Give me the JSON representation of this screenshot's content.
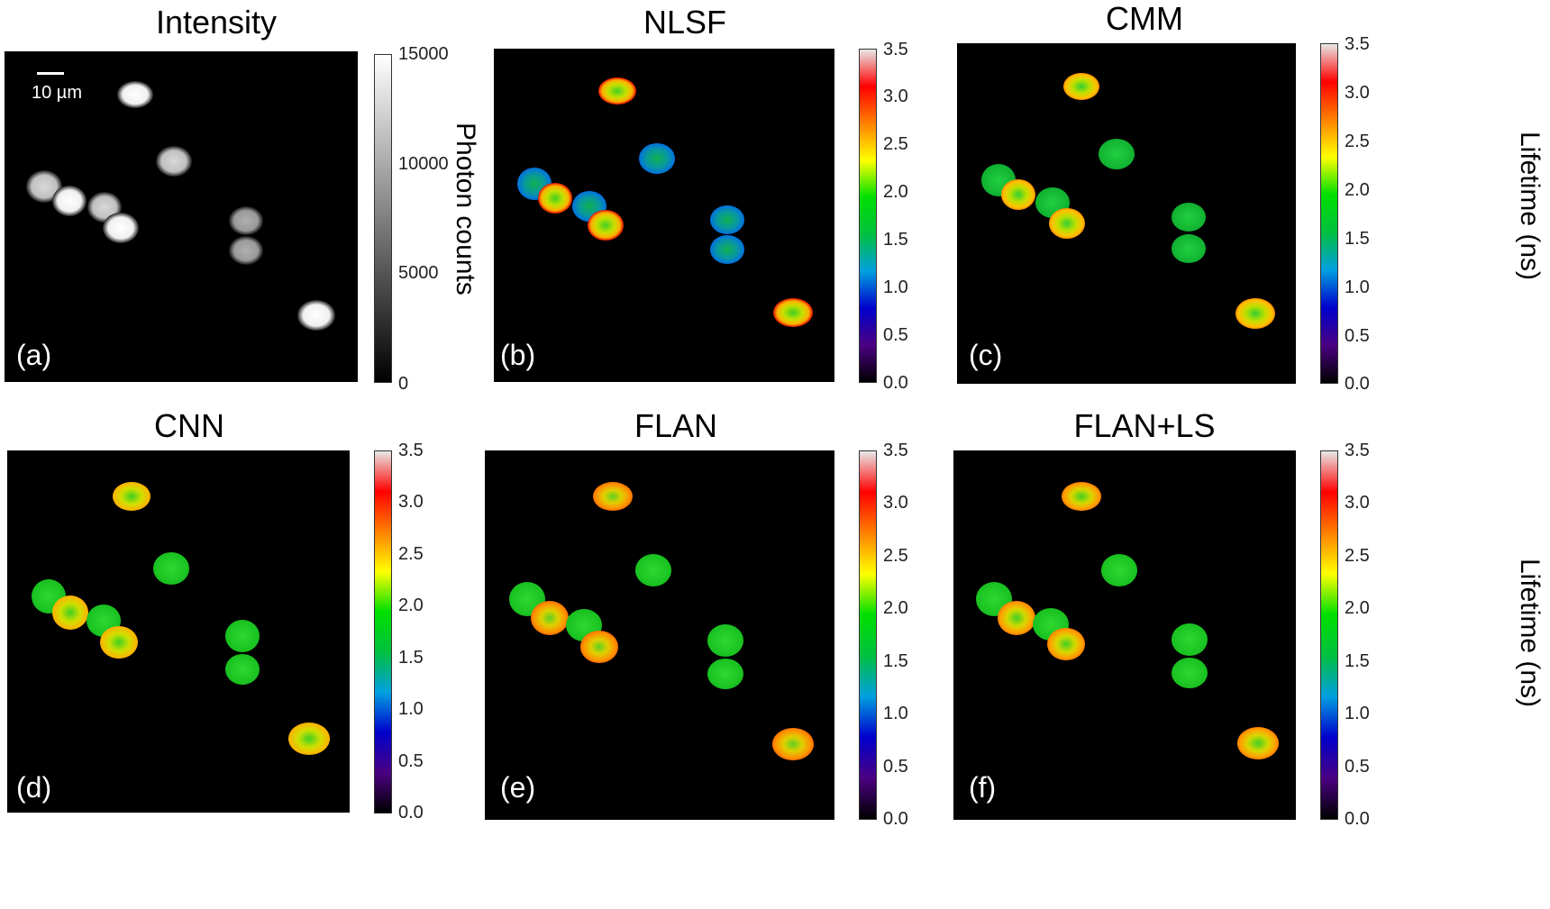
{
  "panels": [
    {
      "id": "a",
      "title": "Intensity",
      "label": "(a)"
    },
    {
      "id": "b",
      "title": "NLSF",
      "label": "(b)"
    },
    {
      "id": "c",
      "title": "CMM",
      "label": "(c)"
    },
    {
      "id": "d",
      "title": "CNN",
      "label": "(d)"
    },
    {
      "id": "e",
      "title": "FLAN",
      "label": "(e)"
    },
    {
      "id": "f",
      "title": "FLAN+LS",
      "label": "(f)"
    }
  ],
  "scale_bar": {
    "text": "10 µm"
  },
  "intensity_colorbar": {
    "label": "Photon counts",
    "ticks": [
      "15000",
      "10000",
      "5000",
      "0"
    ],
    "colors": [
      "#000000",
      "#ffffff"
    ]
  },
  "lifetime_colorbar": {
    "label": "Lifetime (ns)",
    "ticks": [
      "3.5",
      "3.0",
      "2.5",
      "2.0",
      "1.5",
      "1.0",
      "0.5",
      "0.0"
    ],
    "colors": [
      "#000000",
      "#4b0082",
      "#0000cd",
      "#00a0e0",
      "#00c040",
      "#00e000",
      "#ffff00",
      "#ff8000",
      "#ff0000",
      "#e8e8e8"
    ]
  }
}
